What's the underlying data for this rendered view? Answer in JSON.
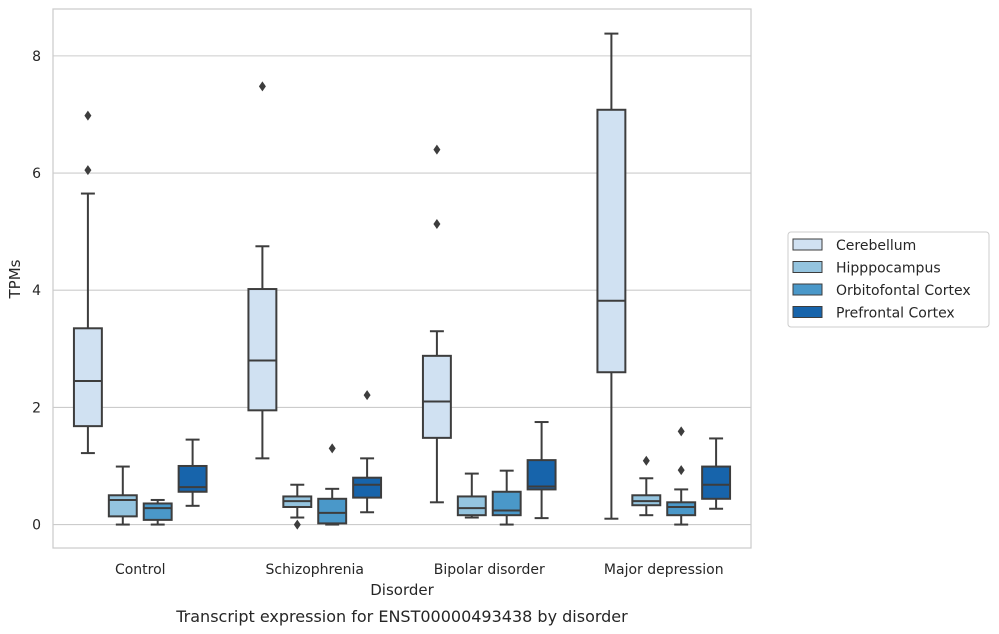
{
  "chart_data": {
    "type": "box",
    "caption": "Transcript expression for ENST00000493438 by disorder",
    "xlabel": "Disorder",
    "ylabel": "TPMs",
    "ylim": [
      -0.4,
      8.8
    ],
    "yticks": [
      0,
      2,
      4,
      6,
      8
    ],
    "grid": true,
    "legend_placement": "right",
    "categories": [
      "Control",
      "Schizophrenia",
      "Bipolar disorder",
      "Major depression"
    ],
    "series": [
      {
        "name": "Cerebellum",
        "color": "#d0e1f2",
        "boxes": [
          {
            "whislo": 1.22,
            "q1": 1.68,
            "med": 2.45,
            "q3": 3.35,
            "whishi": 5.65,
            "fliers": [
              6.05,
              6.98
            ]
          },
          {
            "whislo": 1.13,
            "q1": 1.95,
            "med": 2.8,
            "q3": 4.02,
            "whishi": 4.75,
            "fliers": [
              7.48
            ]
          },
          {
            "whislo": 0.38,
            "q1": 1.48,
            "med": 2.1,
            "q3": 2.88,
            "whishi": 3.3,
            "fliers": [
              5.13,
              6.4
            ]
          },
          {
            "whislo": 0.1,
            "q1": 2.6,
            "med": 3.82,
            "q3": 7.08,
            "whishi": 8.38,
            "fliers": []
          }
        ]
      },
      {
        "name": "Hipppocampus",
        "color": "#94c4df",
        "boxes": [
          {
            "whislo": 0.0,
            "q1": 0.14,
            "med": 0.42,
            "q3": 0.5,
            "whishi": 0.99,
            "fliers": []
          },
          {
            "whislo": 0.12,
            "q1": 0.3,
            "med": 0.4,
            "q3": 0.48,
            "whishi": 0.68,
            "fliers": [
              0.0
            ]
          },
          {
            "whislo": 0.12,
            "q1": 0.16,
            "med": 0.28,
            "q3": 0.48,
            "whishi": 0.87,
            "fliers": []
          },
          {
            "whislo": 0.16,
            "q1": 0.33,
            "med": 0.4,
            "q3": 0.5,
            "whishi": 0.79,
            "fliers": [
              1.09
            ]
          }
        ]
      },
      {
        "name": "Orbitofontal Cortex",
        "color": "#4a98c9",
        "boxes": [
          {
            "whislo": 0.0,
            "q1": 0.08,
            "med": 0.28,
            "q3": 0.36,
            "whishi": 0.42,
            "fliers": []
          },
          {
            "whislo": 0.0,
            "q1": 0.02,
            "med": 0.2,
            "q3": 0.44,
            "whishi": 0.61,
            "fliers": [
              1.3
            ]
          },
          {
            "whislo": 0.0,
            "q1": 0.16,
            "med": 0.24,
            "q3": 0.56,
            "whishi": 0.92,
            "fliers": []
          },
          {
            "whislo": 0.0,
            "q1": 0.16,
            "med": 0.3,
            "q3": 0.38,
            "whishi": 0.6,
            "fliers": [
              0.93,
              1.59
            ]
          }
        ]
      },
      {
        "name": "Prefrontal Cortex",
        "color": "#1764ab",
        "boxes": [
          {
            "whislo": 0.32,
            "q1": 0.56,
            "med": 0.64,
            "q3": 1.0,
            "whishi": 1.45,
            "fliers": []
          },
          {
            "whislo": 0.21,
            "q1": 0.46,
            "med": 0.68,
            "q3": 0.8,
            "whishi": 1.13,
            "fliers": [
              2.21
            ]
          },
          {
            "whislo": 0.11,
            "q1": 0.6,
            "med": 0.65,
            "q3": 1.1,
            "whishi": 1.75,
            "fliers": []
          },
          {
            "whislo": 0.27,
            "q1": 0.44,
            "med": 0.68,
            "q3": 0.99,
            "whishi": 1.47,
            "fliers": []
          }
        ]
      }
    ]
  }
}
